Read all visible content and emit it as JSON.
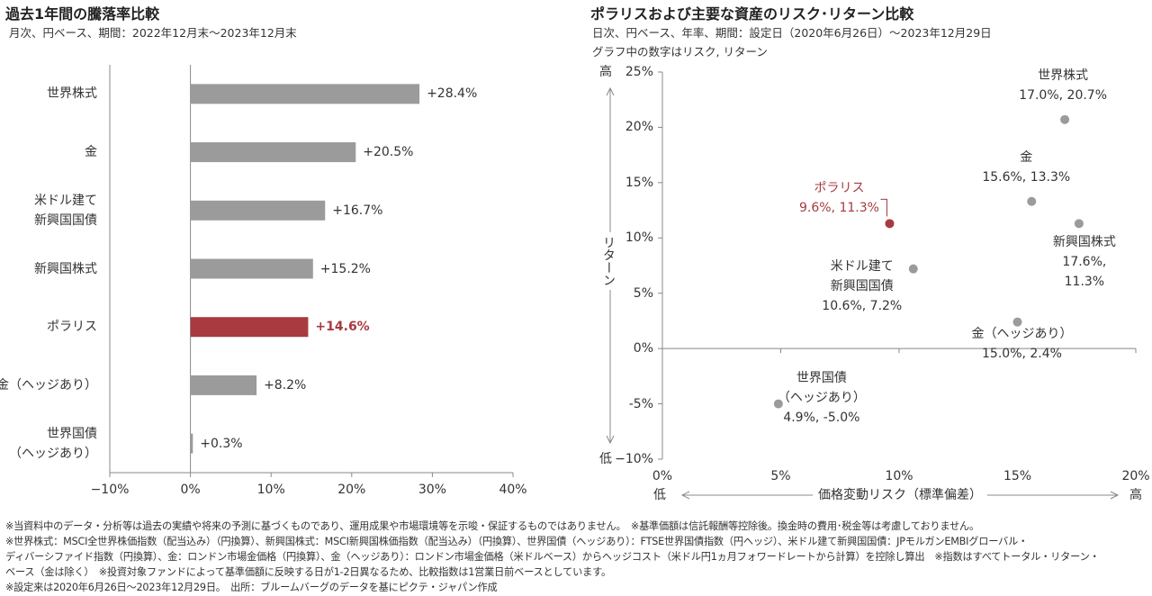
{
  "chart_data": [
    {
      "type": "hbar",
      "title": "過去1年間の騰落率比較",
      "subtitle": "月次、円ベース、期間：2022年12月末〜2023年12月末",
      "categories": [
        "世界株式",
        "金",
        "米ドル建て\n新興国国債",
        "新興国株式",
        "ポラリス",
        "金（ヘッジあり）",
        "世界国債\n（ヘッジあり）"
      ],
      "values": [
        28.4,
        20.5,
        16.7,
        15.2,
        14.6,
        8.2,
        0.3
      ],
      "value_labels": [
        "+28.4%",
        "+20.5%",
        "+16.7%",
        "+15.2%",
        "+14.6%",
        "+8.2%",
        "+0.3%"
      ],
      "color": "#9b9b9b",
      "colors": [
        "#9b9b9b",
        "#9b9b9b",
        "#9b9b9b",
        "#9b9b9b",
        "#a83a40",
        "#9b9b9b",
        "#9b9b9b"
      ],
      "xlim": [
        -10,
        40
      ],
      "xticks": [
        {
          "value": -10,
          "label": "−10%"
        },
        {
          "value": 0,
          "label": "0%"
        },
        {
          "value": 10,
          "label": "10%"
        },
        {
          "value": 20,
          "label": "20%"
        },
        {
          "value": 30,
          "label": "30%"
        },
        {
          "value": 40,
          "label": "40%"
        }
      ]
    },
    {
      "type": "scatter",
      "title": "ポラリスおよび主要な資産のリスク･リターン比較",
      "subtitle": [
        "日次、円ベース、年率、期間：設定日（2020年6月26日）〜2023年12月29日",
        "グラフ中の数字はリスク, リターン"
      ],
      "labels": [
        "世界株式",
        "金",
        "ポラリス",
        "新興国株式",
        "米ドル建て\n新興国国債",
        "金（ヘッジあり）",
        "世界国債\n（ヘッジあり）"
      ],
      "x": [
        17.0,
        15.6,
        9.6,
        17.6,
        10.6,
        15.0,
        4.9
      ],
      "values": [
        20.7,
        13.3,
        11.3,
        11.3,
        7.2,
        2.4,
        -5.0
      ],
      "value_labels": [
        "17.0%, 20.7%",
        "15.6%, 13.3%",
        "9.6%, 11.3%",
        "17.6%, 11.3%",
        "10.6%, 7.2%",
        "15.0%, 2.4%",
        "4.9%, -5.0%"
      ],
      "color": "#9b9b9b",
      "colors": [
        "#9b9b9b",
        "#9b9b9b",
        "#a83a40",
        "#9b9b9b",
        "#9b9b9b",
        "#9b9b9b",
        "#9b9b9b"
      ],
      "xlim": [
        0,
        20
      ],
      "ylim": [
        -10,
        25
      ],
      "xticks": [
        {
          "value": 0,
          "label": "0%"
        },
        {
          "value": 5,
          "label": "5%"
        },
        {
          "value": 10,
          "label": "10%"
        },
        {
          "value": 15,
          "label": "15%"
        },
        {
          "value": 20,
          "label": "20%"
        }
      ],
      "yticks": [
        {
          "value": -10,
          "label": "−10%"
        },
        {
          "value": -5,
          "label": "-5%"
        },
        {
          "value": 0,
          "label": "0%"
        },
        {
          "value": 5,
          "label": "5%"
        },
        {
          "value": 10,
          "label": "10%"
        },
        {
          "value": 15,
          "label": "15%"
        },
        {
          "value": 20,
          "label": "20%"
        },
        {
          "value": 25,
          "label": "25%"
        }
      ],
      "ylabel": "リターン",
      "y_high": "高",
      "y_low": "低",
      "xlabel": "価格変動リスク（標準偏差）",
      "x_low": "低",
      "x_high": "高"
    }
  ],
  "notes": [
    "※当資料中のデータ・分析等は過去の実績や将来の予測に基づくものであり、運用成果や市場環境等を示唆・保証するものではありません。　※基準価額は信託報酬等控除後。換金時の費用･税金等は考慮しておりません。",
    "※世界株式：MSCI全世界株価指数（配当込み）（円換算）、新興国株式：MSCI新興国株価指数（配当込み）（円換算）、世界国債（ヘッジあり）：FTSE世界国債指数（円ヘッジ）、米ドル建て新興国国債：JPモルガンEMBIグローバル・",
    "ディバーシファイド指数（円換算）、金：ロンドン市場金価格（円換算）、金（ヘッジあり）：ロンドン市場金価格（米ドルベース）からヘッジコスト（米ドル円1ヵ月フォワードレートから計算）を控除し算出　※指数はすべてトータル・リターン・",
    "ベース（金は除く）　※投資対象ファンドによって基準価額に反映する日が1-2日異なるため、比較指数は1営業日前ベースとしています。",
    "※設定来は2020年6月26日〜2023年12月29日。　出所：ブルームバーグのデータを基にピクテ・ジャパン作成"
  ]
}
